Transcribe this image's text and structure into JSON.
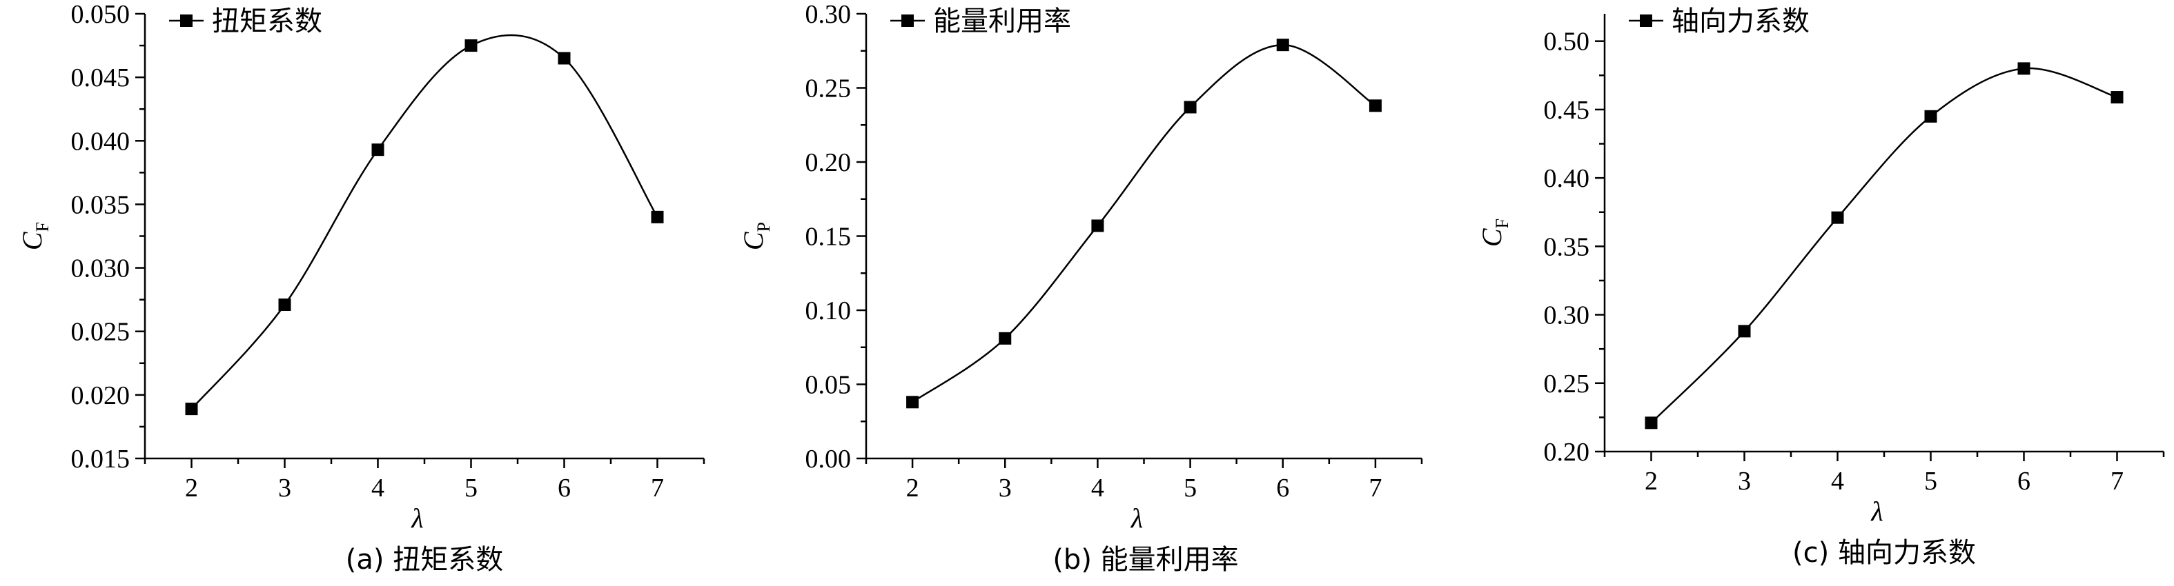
{
  "chart_data": [
    {
      "type": "line",
      "legend": "扭矩系数",
      "legend_position": "top-left",
      "caption": "(a) 扭矩系数",
      "xlabel": "λ",
      "ylabel_main": "C",
      "ylabel_sub": "F",
      "xlim": [
        1.5,
        7.5
      ],
      "ylim": [
        0.015,
        0.05
      ],
      "xticks": [
        2,
        3,
        4,
        5,
        6,
        7
      ],
      "xtick_labels": [
        "2",
        "3",
        "4",
        "5",
        "6",
        "7"
      ],
      "yticks": [
        0.015,
        0.02,
        0.025,
        0.03,
        0.035,
        0.04,
        0.045,
        0.05
      ],
      "ytick_labels": [
        "0.015",
        "0.020",
        "0.025",
        "0.030",
        "0.035",
        "0.040",
        "0.045",
        "0.050"
      ],
      "x": [
        2,
        3,
        4,
        5,
        6,
        7
      ],
      "y": [
        0.0189,
        0.0271,
        0.0393,
        0.0475,
        0.0465,
        0.034
      ],
      "grid": false
    },
    {
      "type": "line",
      "legend": "能量利用率",
      "legend_position": "top-left",
      "caption": "(b) 能量利用率",
      "xlabel": "λ",
      "ylabel_main": "C",
      "ylabel_sub": "P",
      "xlim": [
        1.5,
        7.5
      ],
      "ylim": [
        0.0,
        0.3
      ],
      "xticks": [
        2,
        3,
        4,
        5,
        6,
        7
      ],
      "xtick_labels": [
        "2",
        "3",
        "4",
        "5",
        "6",
        "7"
      ],
      "yticks": [
        0.0,
        0.05,
        0.1,
        0.15,
        0.2,
        0.25,
        0.3
      ],
      "ytick_labels": [
        "0.00",
        "0.05",
        "0.10",
        "0.15",
        "0.20",
        "0.25",
        "0.30"
      ],
      "x": [
        2,
        3,
        4,
        5,
        6,
        7
      ],
      "y": [
        0.038,
        0.081,
        0.157,
        0.237,
        0.279,
        0.238
      ],
      "grid": false
    },
    {
      "type": "line",
      "legend": "轴向力系数",
      "legend_position": "top-left",
      "caption": "(c) 轴向力系数",
      "xlabel": "λ",
      "ylabel_main": "C",
      "ylabel_sub": "F",
      "xlim": [
        1.5,
        7.5
      ],
      "ylim": [
        0.2,
        0.52
      ],
      "xticks": [
        2,
        3,
        4,
        5,
        6,
        7
      ],
      "xtick_labels": [
        "2",
        "3",
        "4",
        "5",
        "6",
        "7"
      ],
      "yticks": [
        0.2,
        0.25,
        0.3,
        0.35,
        0.4,
        0.45,
        0.5
      ],
      "ytick_labels": [
        "0.20",
        "0.25",
        "0.30",
        "0.35",
        "0.40",
        "0.45",
        "0.50"
      ],
      "x": [
        2,
        3,
        4,
        5,
        6,
        7
      ],
      "y": [
        0.221,
        0.288,
        0.371,
        0.445,
        0.48,
        0.459
      ],
      "grid": false
    }
  ]
}
